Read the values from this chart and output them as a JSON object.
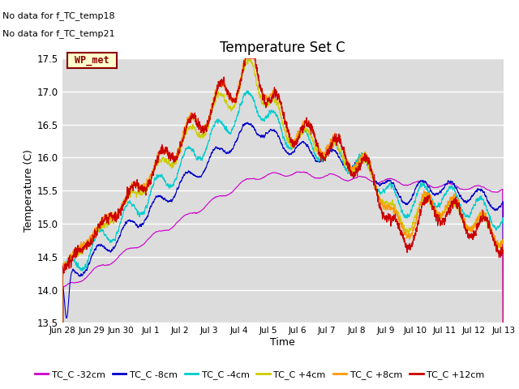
{
  "title": "Temperature Set C",
  "xlabel": "Time",
  "ylabel": "Temperature (C)",
  "ylim": [
    13.5,
    17.5
  ],
  "bg_color": "#dcdcdc",
  "text_color": "#333333",
  "no_data_text": [
    "No data for f_TC_temp18",
    "No data for f_TC_temp21"
  ],
  "wp_met_label": "WP_met",
  "wp_met_box_color": "#ffffcc",
  "wp_met_text_color": "#8b0000",
  "wp_met_border_color": "#8b0000",
  "xtick_labels": [
    "Jun 28",
    "Jun 29",
    "Jun 30",
    "Jul 1",
    "Jul 2",
    "Jul 3",
    "Jul 4",
    "Jul 5",
    "Jul 6",
    "Jul 7",
    "Jul 8",
    "Jul 9",
    "Jul 10",
    "Jul 11",
    "Jul 12",
    "Jul 13"
  ],
  "series_colors": [
    "#cc00cc",
    "#0000cc",
    "#00cccc",
    "#cccc00",
    "#ff9900",
    "#cc0000"
  ],
  "series_labels": [
    "TC_C -32cm",
    "TC_C -8cm",
    "TC_C -4cm",
    "TC_C +4cm",
    "TC_C +8cm",
    "TC_C +12cm"
  ],
  "grid_color": "#ffffff",
  "line_width": 0.8
}
